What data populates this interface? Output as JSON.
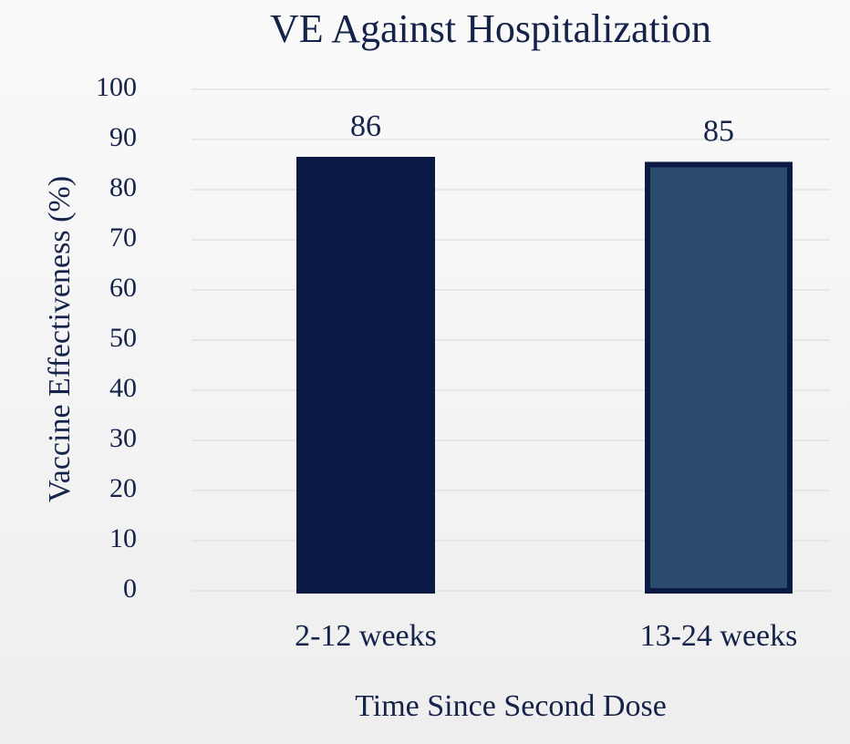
{
  "chart_data": {
    "type": "bar",
    "title": "VE Against Hospitalization",
    "xlabel": "Time Since Second Dose",
    "ylabel": "Vaccine Effectiveness (%)",
    "categories": [
      "2-12 weeks",
      "13-24 weeks"
    ],
    "values": [
      86,
      85
    ],
    "colors": [
      "#0b1a45",
      "#2a4a6e"
    ],
    "edgecolor": "#0b1a45",
    "ylim": [
      0,
      100
    ],
    "yticks": [
      0,
      10,
      20,
      30,
      40,
      50,
      60,
      70,
      80,
      90,
      100
    ],
    "grid": true
  }
}
